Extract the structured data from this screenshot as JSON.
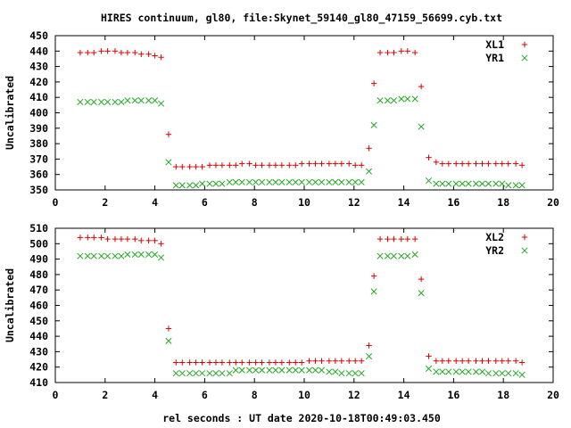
{
  "title": "HIRES continuum, gl80, file:Skynet_59140_gl80_47159_56699.cyb.txt",
  "xlabel": "rel seconds : UT date 2020-10-18T00:49:03.450",
  "colors": {
    "red": "#dd0000",
    "green": "#22aa22"
  },
  "chart_data": [
    {
      "type": "scatter",
      "ylabel": "Uncalibrated",
      "xlim": [
        0,
        20
      ],
      "ylim": [
        350,
        450
      ],
      "xticks": [
        0,
        2,
        4,
        6,
        8,
        10,
        12,
        14,
        16,
        18,
        20
      ],
      "yticks": [
        350,
        360,
        370,
        380,
        390,
        400,
        410,
        420,
        430,
        440,
        450
      ],
      "legend_position": "top-right",
      "series": [
        {
          "name": "XL1",
          "marker": "plus",
          "color": "#dd0000",
          "x": [
            1.0,
            1.2,
            1.4,
            1.6,
            1.8,
            2.0,
            2.2,
            2.4,
            2.6,
            2.8,
            3.0,
            3.2,
            3.4,
            3.6,
            3.8,
            4.0,
            4.2,
            4.4,
            4.6,
            4.8,
            5.0,
            5.2,
            5.4,
            5.6,
            5.8,
            6.0,
            6.2,
            6.4,
            6.6,
            6.8,
            7.0,
            7.2,
            7.4,
            7.6,
            7.8,
            8.0,
            8.2,
            8.4,
            8.6,
            8.8,
            9.0,
            9.2,
            9.4,
            9.6,
            9.8,
            10.0,
            10.2,
            10.4,
            10.6,
            10.8,
            11.0,
            11.2,
            11.4,
            11.6,
            11.8,
            12.0,
            12.2,
            12.4,
            12.6,
            12.8,
            13.0,
            13.2,
            13.4,
            13.6,
            13.8,
            14.0,
            14.2,
            14.4,
            14.6,
            14.8,
            15.0,
            15.2,
            15.4,
            15.6,
            15.8,
            16.0,
            16.2,
            16.4,
            16.6,
            16.8,
            17.0,
            17.2,
            17.4,
            17.6,
            17.8,
            18.0,
            18.2,
            18.4,
            18.6,
            18.8
          ],
          "y": [
            439,
            439,
            439,
            440,
            440,
            440,
            439,
            439,
            439,
            438,
            438,
            437,
            437,
            438,
            436,
            386,
            365,
            365,
            365,
            365,
            365,
            366,
            366,
            366,
            366,
            366,
            366,
            366,
            366,
            366,
            367,
            367,
            367,
            367,
            367,
            367,
            367,
            367,
            367,
            367,
            367,
            367,
            367,
            367,
            367,
            367,
            366,
            366,
            367,
            367,
            368,
            368,
            368,
            368,
            367,
            366,
            367,
            367,
            366,
            377,
            419,
            439,
            439,
            440,
            440,
            440,
            439,
            417,
            371,
            368,
            367,
            367,
            367,
            367,
            367,
            367,
            367,
            367,
            367,
            367,
            367,
            367,
            367,
            367,
            367,
            366,
            366,
            366,
            366,
            366
          ],
          "x_recorded": [
            1,
            1.3,
            1.55,
            1.85,
            2.1,
            2.4,
            2.65,
            2.9,
            3.2,
            3.45,
            3.75,
            4.0,
            4.25,
            4.55,
            4.85,
            5.1,
            5.4,
            5.65,
            5.9,
            6.2,
            6.45,
            6.7,
            7.0,
            7.25,
            7.5,
            7.8,
            8.05,
            8.3,
            8.6,
            8.85,
            9.1,
            9.4,
            9.65,
            9.9,
            10.2,
            10.45,
            10.7,
            11.0,
            11.25,
            11.5,
            11.8,
            12.05,
            12.3,
            12.6,
            12.8,
            13.05,
            13.35,
            13.6,
            13.9,
            14.15,
            14.45,
            14.7,
            15.0,
            15.3,
            15.55,
            15.8,
            16.1,
            16.35,
            16.6,
            16.9,
            17.15,
            17.4,
            17.7,
            17.95,
            18.2,
            18.5,
            18.75
          ],
          "y_recorded": [
            439,
            439,
            439,
            440,
            440,
            440,
            439,
            439,
            439,
            438,
            438,
            437,
            436,
            386,
            365,
            365,
            365,
            365,
            365,
            366,
            366,
            366,
            366,
            366,
            367,
            367,
            366,
            366,
            366,
            366,
            366,
            366,
            366,
            367,
            367,
            367,
            367,
            367,
            367,
            367,
            367,
            366,
            366,
            377,
            419,
            439,
            439,
            439,
            440,
            440,
            439,
            417,
            371,
            368,
            367,
            367,
            367,
            367,
            367,
            367,
            367,
            367,
            367,
            367,
            367,
            367,
            366
          ]
        },
        {
          "name": "YR1",
          "marker": "cross",
          "color": "#22aa22",
          "x_recorded": [
            1,
            1.3,
            1.55,
            1.85,
            2.1,
            2.4,
            2.65,
            2.9,
            3.2,
            3.45,
            3.75,
            4.0,
            4.25,
            4.55,
            4.85,
            5.1,
            5.4,
            5.65,
            5.9,
            6.2,
            6.45,
            6.7,
            7.0,
            7.25,
            7.5,
            7.8,
            8.05,
            8.3,
            8.6,
            8.85,
            9.1,
            9.4,
            9.65,
            9.9,
            10.2,
            10.45,
            10.7,
            11.0,
            11.25,
            11.5,
            11.8,
            12.05,
            12.3,
            12.6,
            12.8,
            13.05,
            13.35,
            13.6,
            13.9,
            14.15,
            14.45,
            14.7,
            15.0,
            15.3,
            15.55,
            15.8,
            16.1,
            16.35,
            16.6,
            16.9,
            17.15,
            17.4,
            17.7,
            17.95,
            18.2,
            18.5,
            18.75
          ],
          "y_recorded": [
            407,
            407,
            407,
            407,
            407,
            407,
            407,
            408,
            408,
            408,
            408,
            408,
            406,
            368,
            353,
            353,
            353,
            353,
            354,
            354,
            354,
            354,
            355,
            355,
            355,
            355,
            355,
            355,
            355,
            355,
            355,
            355,
            355,
            355,
            355,
            355,
            355,
            355,
            355,
            355,
            355,
            355,
            355,
            362,
            392,
            408,
            408,
            408,
            409,
            409,
            409,
            391,
            356,
            354,
            354,
            354,
            354,
            354,
            354,
            354,
            354,
            354,
            354,
            354,
            353,
            353,
            353
          ]
        }
      ]
    },
    {
      "type": "scatter",
      "ylabel": "Uncalibrated",
      "xlim": [
        0,
        20
      ],
      "ylim": [
        410,
        510
      ],
      "xticks": [
        0,
        2,
        4,
        6,
        8,
        10,
        12,
        14,
        16,
        18,
        20
      ],
      "yticks": [
        410,
        420,
        430,
        440,
        450,
        460,
        470,
        480,
        490,
        500,
        510
      ],
      "legend_position": "top-right",
      "series": [
        {
          "name": "XL2",
          "marker": "plus",
          "color": "#dd0000",
          "x_recorded": [
            1,
            1.3,
            1.55,
            1.85,
            2.1,
            2.4,
            2.65,
            2.9,
            3.2,
            3.45,
            3.75,
            4.0,
            4.25,
            4.55,
            4.85,
            5.1,
            5.4,
            5.65,
            5.9,
            6.2,
            6.45,
            6.7,
            7.0,
            7.25,
            7.5,
            7.8,
            8.05,
            8.3,
            8.6,
            8.85,
            9.1,
            9.4,
            9.65,
            9.9,
            10.2,
            10.45,
            10.7,
            11.0,
            11.25,
            11.5,
            11.8,
            12.05,
            12.3,
            12.6,
            12.8,
            13.05,
            13.35,
            13.6,
            13.9,
            14.15,
            14.45,
            14.7,
            15.0,
            15.3,
            15.55,
            15.8,
            16.1,
            16.35,
            16.6,
            16.9,
            17.15,
            17.4,
            17.7,
            17.95,
            18.2,
            18.5,
            18.75
          ],
          "y_recorded": [
            504,
            504,
            504,
            504,
            503,
            503,
            503,
            503,
            503,
            502,
            502,
            502,
            500,
            445,
            423,
            423,
            423,
            423,
            423,
            423,
            423,
            423,
            423,
            423,
            423,
            423,
            423,
            423,
            423,
            423,
            423,
            423,
            423,
            423,
            424,
            424,
            424,
            424,
            424,
            424,
            424,
            424,
            424,
            434,
            479,
            503,
            503,
            503,
            503,
            503,
            503,
            477,
            427,
            424,
            424,
            424,
            424,
            424,
            424,
            424,
            424,
            424,
            424,
            424,
            424,
            424,
            423
          ]
        },
        {
          "name": "YR2",
          "marker": "cross",
          "color": "#22aa22",
          "x_recorded": [
            1,
            1.3,
            1.55,
            1.85,
            2.1,
            2.4,
            2.65,
            2.9,
            3.2,
            3.45,
            3.75,
            4.0,
            4.25,
            4.55,
            4.85,
            5.1,
            5.4,
            5.65,
            5.9,
            6.2,
            6.45,
            6.7,
            7.0,
            7.25,
            7.5,
            7.8,
            8.05,
            8.3,
            8.6,
            8.85,
            9.1,
            9.4,
            9.65,
            9.9,
            10.2,
            10.45,
            10.7,
            11.0,
            11.25,
            11.5,
            11.8,
            12.05,
            12.3,
            12.6,
            12.8,
            13.05,
            13.35,
            13.6,
            13.9,
            14.15,
            14.45,
            14.7,
            15.0,
            15.3,
            15.55,
            15.8,
            16.1,
            16.35,
            16.6,
            16.9,
            17.15,
            17.4,
            17.7,
            17.95,
            18.2,
            18.5,
            18.75
          ],
          "y_recorded": [
            492,
            492,
            492,
            492,
            492,
            492,
            492,
            493,
            493,
            493,
            493,
            493,
            491,
            437,
            416,
            416,
            416,
            416,
            416,
            416,
            416,
            416,
            416,
            418,
            418,
            418,
            418,
            418,
            418,
            418,
            418,
            418,
            418,
            418,
            418,
            418,
            418,
            417,
            417,
            416,
            416,
            416,
            416,
            427,
            469,
            492,
            492,
            492,
            492,
            492,
            493,
            468,
            419,
            417,
            417,
            417,
            417,
            417,
            417,
            417,
            417,
            416,
            416,
            416,
            416,
            416,
            415
          ]
        }
      ]
    }
  ]
}
